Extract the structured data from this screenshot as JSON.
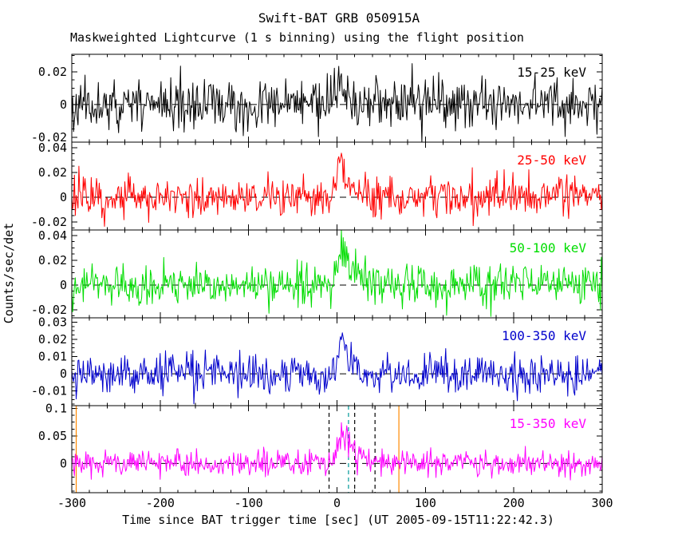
{
  "title": "Swift-BAT GRB 050915A",
  "subtitle": "Maskweighted Lightcurve (1 s binning) using the flight position",
  "xlabel": "Time since BAT trigger time [sec] (UT 2005-09-15T11:22:42.3)",
  "ylabel": "Counts/sec/det",
  "chart_data": {
    "type": "line",
    "x_range": [
      -300,
      300
    ],
    "binning_sec": 1,
    "grid": false,
    "zero_line_style": "dashed",
    "x_ticks": [
      {
        "value": -300,
        "label": "-300"
      },
      {
        "value": -200,
        "label": "-200"
      },
      {
        "value": -100,
        "label": "-100"
      },
      {
        "value": 0,
        "label": "0"
      },
      {
        "value": 100,
        "label": "100"
      },
      {
        "value": 200,
        "label": "200"
      },
      {
        "value": 300,
        "label": "300"
      }
    ],
    "panels": [
      {
        "label": "15-25 keV",
        "color": "#000000",
        "ylim": [
          -0.023,
          0.0307
        ],
        "yticks": [
          {
            "value": 0.02,
            "label": "0.02"
          },
          {
            "value": 0,
            "label": "0"
          },
          {
            "value": -0.02,
            "label": "-0.02"
          }
        ],
        "noise_sigma": 0.0075,
        "burst": {
          "t1": 4,
          "w1": 4,
          "a1": 0.012,
          "t2": 18,
          "w2": 7,
          "a2": 0.006
        },
        "seed": 11
      },
      {
        "label": "25-50 keV",
        "color": "#ff0000",
        "ylim": [
          -0.0265,
          0.0445
        ],
        "yticks": [
          {
            "value": 0.04,
            "label": "0.04"
          },
          {
            "value": 0.02,
            "label": "0.02"
          },
          {
            "value": 0,
            "label": "0"
          },
          {
            "value": -0.02,
            "label": "-0.02"
          }
        ],
        "noise_sigma": 0.008,
        "burst": {
          "t1": 4,
          "w1": 4,
          "a1": 0.022,
          "t2": 16,
          "w2": 6,
          "a2": 0.01
        },
        "seed": 22
      },
      {
        "label": "50-100 keV",
        "color": "#00dd00",
        "ylim": [
          -0.0265,
          0.0445
        ],
        "yticks": [
          {
            "value": 0.04,
            "label": "0.04"
          },
          {
            "value": 0.02,
            "label": "0.02"
          },
          {
            "value": 0,
            "label": "0"
          },
          {
            "value": -0.02,
            "label": "-0.02"
          }
        ],
        "noise_sigma": 0.008,
        "burst": {
          "t1": 5,
          "w1": 4,
          "a1": 0.02,
          "t2": 16,
          "w2": 9,
          "a2": 0.014
        },
        "seed": 33
      },
      {
        "label": "100-350 keV",
        "color": "#0000cc",
        "ylim": [
          -0.0185,
          0.0325
        ],
        "yticks": [
          {
            "value": 0.03,
            "label": "0.03"
          },
          {
            "value": 0.02,
            "label": "0.02"
          },
          {
            "value": 0.01,
            "label": "0.01"
          },
          {
            "value": 0,
            "label": "0"
          },
          {
            "value": -0.01,
            "label": "-0.01"
          }
        ],
        "noise_sigma": 0.0055,
        "burst": {
          "t1": 6,
          "w1": 5,
          "a1": 0.014,
          "t2": 16,
          "w2": 6,
          "a2": 0.008
        },
        "seed": 44
      },
      {
        "label": "15-350 keV",
        "color": "#ff00ff",
        "ylim": [
          -0.053,
          0.105
        ],
        "yticks": [
          {
            "value": 0.1,
            "label": "0.1"
          },
          {
            "value": 0.05,
            "label": "0.05"
          },
          {
            "value": 0,
            "label": "0"
          }
        ],
        "noise_sigma": 0.012,
        "burst": {
          "t1": 5,
          "w1": 4,
          "a1": 0.055,
          "t2": 16,
          "w2": 7,
          "a2": 0.03
        },
        "vlines": [
          {
            "x": -295,
            "color": "#ff8800",
            "style": "solid"
          },
          {
            "x": 70,
            "color": "#ff8800",
            "style": "solid"
          },
          {
            "x": -9,
            "color": "#000000",
            "style": "dashed"
          },
          {
            "x": 13,
            "color": "#009999",
            "style": "dashed"
          },
          {
            "x": 20,
            "color": "#000000",
            "style": "dashed"
          },
          {
            "x": 43,
            "color": "#000000",
            "style": "dashed"
          }
        ],
        "seed": 55
      }
    ]
  }
}
